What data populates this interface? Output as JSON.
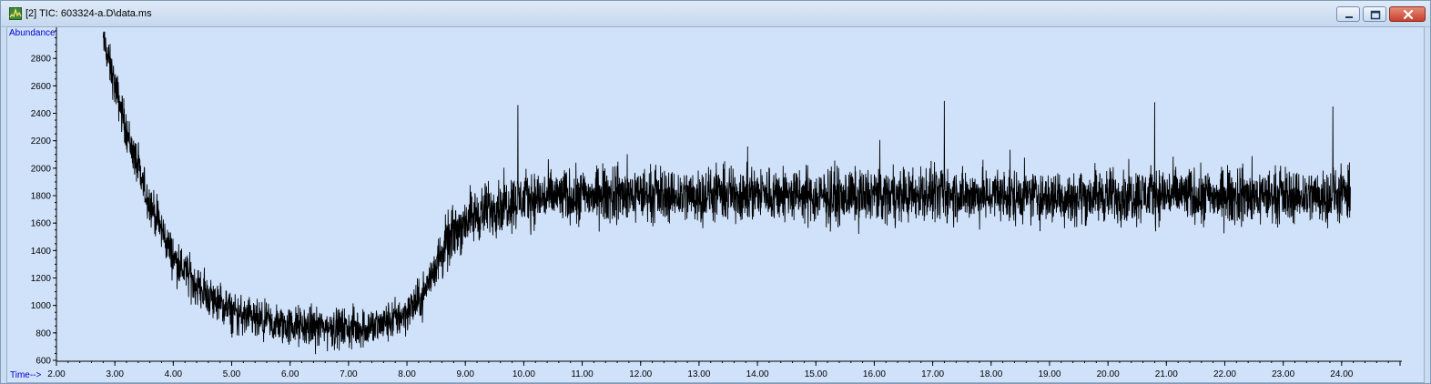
{
  "window": {
    "title": "[2] TIC: 603324-a.D\\data.ms",
    "icon": "chromatogram-app-icon",
    "controls": [
      "minimize-icon",
      "maximize-icon",
      "close-icon"
    ]
  },
  "colors": {
    "plot_background": "#d0e2fa",
    "trace": "#000000",
    "axis_title": "#0000cc"
  },
  "chart_data": {
    "type": "line",
    "title": "TIC: 603324-a.D\\data.ms",
    "xlabel": "Time-->",
    "ylabel": "Abundance",
    "xlim": [
      2.0,
      25.0
    ],
    "ylim": [
      600,
      3000
    ],
    "x_ticks": [
      "2.00",
      "3.00",
      "4.00",
      "5.00",
      "6.00",
      "7.00",
      "8.00",
      "9.00",
      "10.00",
      "11.00",
      "12.00",
      "13.00",
      "14.00",
      "15.00",
      "16.00",
      "17.00",
      "18.00",
      "19.00",
      "20.00",
      "21.00",
      "22.00",
      "23.00",
      "24.00"
    ],
    "y_ticks": [
      "600",
      "800",
      "1000",
      "1200",
      "1400",
      "1600",
      "1800",
      "2000",
      "2200",
      "2400",
      "2600",
      "2800"
    ],
    "series": [
      {
        "x": [
          2.8,
          3.0,
          3.25,
          3.5,
          4.0,
          4.5,
          5.0,
          5.5,
          6.0,
          6.5,
          7.0,
          7.5,
          7.8,
          8.0,
          8.25,
          8.5,
          8.75,
          9.0,
          9.5,
          10.0,
          11.0,
          12.0,
          13.0,
          14.0,
          15.0,
          16.0,
          17.0,
          18.0,
          19.0,
          20.0,
          21.0,
          22.0,
          23.0,
          24.0,
          24.15
        ],
        "y": [
          2950,
          2600,
          2200,
          1850,
          1350,
          1100,
          950,
          870,
          850,
          840,
          830,
          850,
          900,
          950,
          1050,
          1300,
          1500,
          1620,
          1720,
          1780,
          1800,
          1810,
          1800,
          1820,
          1790,
          1800,
          1810,
          1800,
          1790,
          1800,
          1810,
          1790,
          1800,
          1800,
          1800
        ],
        "noise_amplitude": 170,
        "peaks": [
          {
            "x": 2.8,
            "y": 2950
          },
          {
            "x": 9.9,
            "y": 2460
          },
          {
            "x": 17.2,
            "y": 2490
          },
          {
            "x": 20.8,
            "y": 2480
          },
          {
            "x": 23.85,
            "y": 2450
          }
        ]
      }
    ],
    "grid": false,
    "legend": "none"
  }
}
